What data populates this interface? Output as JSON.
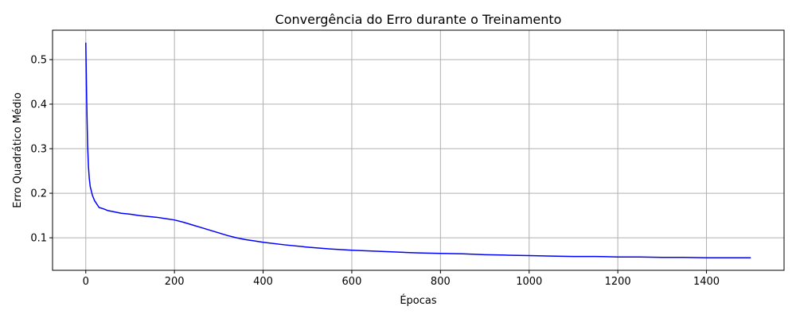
{
  "chart_data": {
    "type": "line",
    "title": "Convergência do Erro durante o Treinamento",
    "xlabel": "Épocas",
    "ylabel": "Erro Quadrático Médio",
    "xlim": [
      -75,
      1575
    ],
    "ylim": [
      0.027,
      0.566
    ],
    "xticks": [
      0,
      200,
      400,
      600,
      800,
      1000,
      1200,
      1400
    ],
    "yticks": [
      0.1,
      0.2,
      0.3,
      0.4,
      0.5
    ],
    "grid": true,
    "colors": {
      "line": "#0000ff",
      "grid": "#b0b0b0"
    },
    "series": [
      {
        "name": "",
        "x": [
          0,
          2,
          4,
          6,
          8,
          10,
          15,
          20,
          30,
          40,
          50,
          60,
          80,
          100,
          120,
          140,
          160,
          180,
          200,
          220,
          240,
          260,
          280,
          300,
          320,
          340,
          360,
          380,
          400,
          450,
          500,
          550,
          600,
          650,
          700,
          750,
          800,
          850,
          900,
          950,
          1000,
          1050,
          1100,
          1150,
          1200,
          1250,
          1300,
          1350,
          1400,
          1450,
          1500
        ],
        "y": [
          0.538,
          0.41,
          0.31,
          0.26,
          0.232,
          0.215,
          0.195,
          0.183,
          0.168,
          0.165,
          0.161,
          0.159,
          0.155,
          0.153,
          0.15,
          0.148,
          0.146,
          0.143,
          0.14,
          0.135,
          0.129,
          0.123,
          0.117,
          0.111,
          0.105,
          0.1,
          0.096,
          0.093,
          0.09,
          0.084,
          0.079,
          0.075,
          0.072,
          0.07,
          0.068,
          0.066,
          0.065,
          0.064,
          0.062,
          0.061,
          0.06,
          0.059,
          0.058,
          0.058,
          0.057,
          0.057,
          0.056,
          0.056,
          0.055,
          0.055,
          0.055
        ]
      }
    ]
  }
}
